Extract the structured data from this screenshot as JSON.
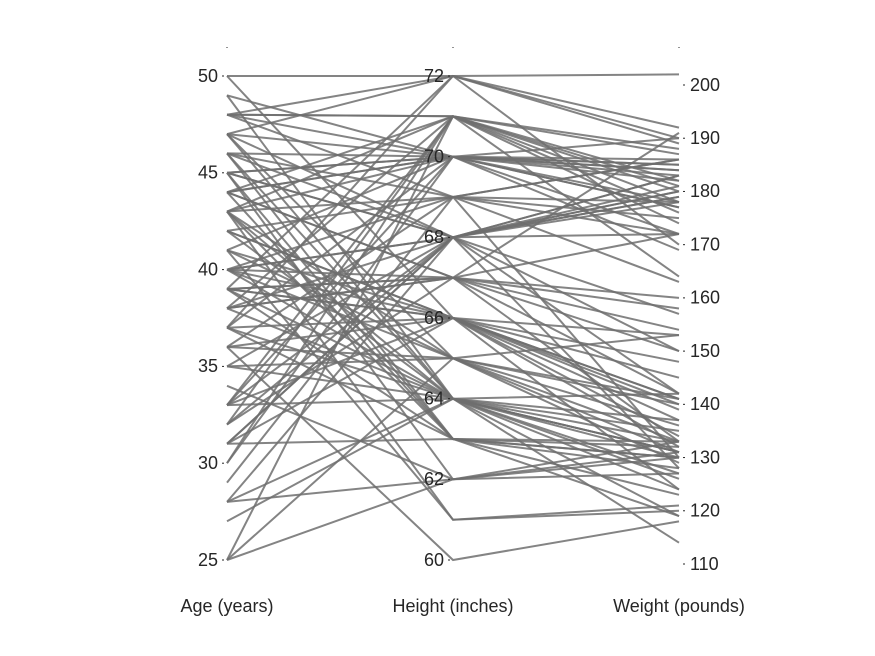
{
  "chart_data": {
    "type": "parallel-coordinates",
    "axes": [
      {
        "label": "Age (years)",
        "ticks": [
          25,
          30,
          35,
          40,
          45,
          50
        ],
        "range": [
          25,
          50
        ]
      },
      {
        "label": "Height (inches)",
        "ticks": [
          60,
          62,
          64,
          66,
          68,
          70,
          72
        ],
        "range": [
          60,
          72
        ]
      },
      {
        "label": "Weight (pounds)",
        "ticks": [
          110,
          120,
          130,
          140,
          150,
          160,
          170,
          180,
          190,
          200
        ],
        "range": [
          109,
          202
        ]
      }
    ],
    "line_color": "#6e6e6e",
    "grid": false,
    "records": [
      [
        38,
        71,
        176
      ],
      [
        43,
        69,
        163
      ],
      [
        38,
        64,
        131
      ],
      [
        40,
        67,
        133
      ],
      [
        49,
        64,
        119
      ],
      [
        46,
        68,
        142
      ],
      [
        33,
        64,
        142
      ],
      [
        40,
        68,
        180
      ],
      [
        28,
        68,
        183
      ],
      [
        31,
        66,
        132
      ],
      [
        45,
        68,
        128
      ],
      [
        42,
        66,
        137
      ],
      [
        25,
        71,
        174
      ],
      [
        39,
        72,
        202
      ],
      [
        36,
        65,
        129
      ],
      [
        48,
        71,
        181
      ],
      [
        32,
        67,
        191
      ],
      [
        27,
        64,
        131
      ],
      [
        37,
        63,
        119
      ],
      [
        50,
        72,
        192
      ],
      [
        48,
        69,
        130
      ],
      [
        39,
        66,
        140
      ],
      [
        41,
        61,
        121
      ],
      [
        44,
        70,
        185
      ],
      [
        32,
        68,
        150
      ],
      [
        25,
        65,
        141
      ],
      [
        43,
        61,
        120
      ],
      [
        47,
        64,
        124
      ],
      [
        46,
        63,
        132
      ],
      [
        48,
        72,
        170
      ],
      [
        45,
        70,
        177
      ],
      [
        40,
        64,
        114
      ],
      [
        45,
        62,
        133
      ],
      [
        37,
        70,
        183
      ],
      [
        47,
        68,
        181
      ],
      [
        48,
        70,
        169
      ],
      [
        46,
        69,
        175
      ],
      [
        36,
        69,
        186
      ],
      [
        37,
        66,
        153
      ],
      [
        36,
        66,
        148
      ],
      [
        35,
        64,
        127
      ],
      [
        30,
        70,
        190
      ],
      [
        43,
        71,
        187
      ],
      [
        39,
        63,
        123
      ],
      [
        39,
        67,
        154
      ],
      [
        36,
        60,
        118
      ],
      [
        39,
        67,
        172
      ],
      [
        40,
        65,
        153
      ],
      [
        43,
        63,
        128
      ],
      [
        40,
        66,
        145
      ],
      [
        33,
        70,
        184
      ],
      [
        35,
        65,
        133
      ],
      [
        28,
        62,
        127
      ],
      [
        33,
        71,
        188
      ],
      [
        38,
        68,
        183
      ],
      [
        42,
        66,
        124
      ],
      [
        41,
        70,
        182
      ],
      [
        44,
        71,
        164
      ],
      [
        28,
        64,
        133
      ],
      [
        44,
        63,
        130
      ],
      [
        32,
        71,
        178
      ],
      [
        40,
        68,
        172
      ],
      [
        39,
        66,
        134
      ],
      [
        34,
        62,
        130
      ],
      [
        33,
        68,
        180
      ],
      [
        40,
        69,
        178
      ],
      [
        42,
        64,
        126
      ],
      [
        38,
        67,
        160
      ],
      [
        33,
        66,
        141
      ],
      [
        31,
        63,
        133
      ],
      [
        46,
        70,
        172
      ],
      [
        37,
        64,
        137
      ],
      [
        42,
        69,
        186
      ],
      [
        38,
        67,
        158
      ],
      [
        37,
        72,
        190
      ],
      [
        31,
        68,
        179
      ],
      [
        41,
        66,
        141
      ],
      [
        45,
        68,
        179
      ],
      [
        43,
        70,
        184
      ],
      [
        44,
        67,
        142
      ],
      [
        47,
        70,
        177
      ],
      [
        43,
        65,
        136
      ],
      [
        45,
        63,
        130
      ],
      [
        29,
        69,
        172
      ],
      [
        44,
        70,
        186
      ],
      [
        25,
        62,
        131
      ],
      [
        41,
        65,
        131
      ],
      [
        44,
        67,
        150
      ],
      [
        45,
        70,
        185
      ],
      [
        39,
        64,
        135
      ],
      [
        35,
        68,
        178
      ],
      [
        47,
        65,
        140
      ],
      [
        50,
        66,
        139
      ],
      [
        48,
        71,
        180
      ],
      [
        49,
        70,
        178
      ],
      [
        46,
        64,
        130
      ],
      [
        30,
        71,
        182
      ],
      [
        43,
        64,
        131
      ],
      [
        47,
        72,
        189
      ],
      [
        31,
        68,
        157
      ]
    ]
  }
}
